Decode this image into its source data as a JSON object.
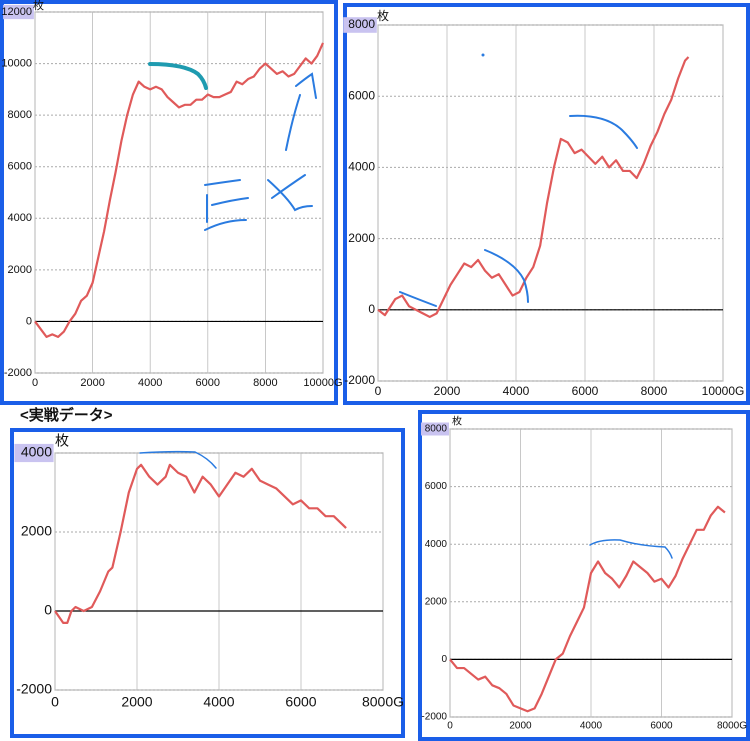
{
  "caption": "<実戦データ>",
  "chart_data": [
    {
      "type": "line",
      "ylabel": "枚",
      "color": "#e05a5a",
      "grid": true,
      "xlim": [
        0,
        10000
      ],
      "xticks": [
        0,
        2000,
        4000,
        6000,
        8000,
        {
          "value": 10000,
          "label": "10000G"
        }
      ],
      "ylim": [
        -2000,
        12000
      ],
      "yticks": [
        -2000,
        0,
        2000,
        4000,
        6000,
        8000,
        10000,
        12000
      ],
      "x": [
        0,
        200,
        400,
        600,
        800,
        1000,
        1200,
        1400,
        1600,
        1800,
        2000,
        2200,
        2400,
        2600,
        2800,
        3000,
        3200,
        3400,
        3600,
        3800,
        4000,
        4200,
        4400,
        4600,
        4800,
        5000,
        5200,
        5400,
        5600,
        5800,
        6000,
        6200,
        6400,
        6600,
        6800,
        7000,
        7200,
        7400,
        7600,
        7800,
        8000,
        8200,
        8400,
        8600,
        8800,
        9000,
        9200,
        9400,
        9600,
        9800,
        10000
      ],
      "values": [
        0,
        -300,
        -600,
        -500,
        -600,
        -400,
        0,
        300,
        800,
        1000,
        1500,
        2500,
        3500,
        4700,
        5800,
        7000,
        8000,
        8800,
        9300,
        9100,
        9000,
        9100,
        9000,
        8700,
        8500,
        8300,
        8400,
        8400,
        8600,
        8600,
        8800,
        8700,
        8700,
        8800,
        8900,
        9300,
        9200,
        9400,
        9500,
        9800,
        10000,
        9800,
        9600,
        9700,
        9500,
        9600,
        9900,
        10200,
        10000,
        10300,
        10800
      ]
    },
    {
      "type": "line",
      "ylabel": "枚",
      "color": "#e05a5a",
      "grid": true,
      "xlim": [
        0,
        10000
      ],
      "xticks": [
        0,
        2000,
        4000,
        6000,
        8000,
        {
          "value": 10000,
          "label": "10000G"
        }
      ],
      "ylim": [
        -2000,
        8000
      ],
      "yticks": [
        -2000,
        0,
        2000,
        4000,
        6000,
        8000
      ],
      "x": [
        0,
        200,
        500,
        700,
        900,
        1100,
        1300,
        1500,
        1700,
        1900,
        2100,
        2300,
        2500,
        2700,
        2900,
        3100,
        3300,
        3500,
        3700,
        3900,
        4100,
        4300,
        4500,
        4700,
        4900,
        5100,
        5300,
        5500,
        5700,
        5900,
        6100,
        6300,
        6500,
        6700,
        6900,
        7100,
        7300,
        7500,
        7700,
        7900,
        8100,
        8300,
        8500,
        8700,
        8900,
        9000
      ],
      "values": [
        0,
        -150,
        300,
        400,
        100,
        0,
        -100,
        -200,
        -100,
        300,
        700,
        1000,
        1300,
        1200,
        1400,
        1100,
        900,
        1000,
        700,
        400,
        500,
        900,
        1200,
        1800,
        3000,
        4000,
        4800,
        4700,
        4400,
        4500,
        4300,
        4100,
        4300,
        4000,
        4200,
        3900,
        3900,
        3700,
        4100,
        4600,
        5000,
        5500,
        5900,
        6500,
        7000,
        7100
      ]
    },
    {
      "type": "line",
      "ylabel": "枚",
      "color": "#e05a5a",
      "grid": true,
      "xlim": [
        0,
        8000
      ],
      "xticks": [
        0,
        2000,
        4000,
        6000,
        {
          "value": 8000,
          "label": "8000G"
        }
      ],
      "ylim": [
        -2000,
        4000
      ],
      "yticks": [
        -2000,
        0,
        2000,
        4000
      ],
      "x": [
        0,
        200,
        300,
        400,
        500,
        700,
        900,
        1100,
        1300,
        1400,
        1600,
        1800,
        2000,
        2100,
        2300,
        2500,
        2700,
        2800,
        3000,
        3200,
        3400,
        3600,
        3800,
        4000,
        4200,
        4400,
        4600,
        4800,
        5000,
        5200,
        5400,
        5600,
        5800,
        6000,
        6200,
        6400,
        6600,
        6800,
        7000,
        7100
      ],
      "values": [
        0,
        -300,
        -300,
        0,
        100,
        0,
        100,
        500,
        1000,
        1100,
        2000,
        3000,
        3600,
        3700,
        3400,
        3200,
        3400,
        3700,
        3500,
        3400,
        3000,
        3400,
        3200,
        2900,
        3200,
        3500,
        3400,
        3600,
        3300,
        3200,
        3100,
        2900,
        2700,
        2800,
        2600,
        2600,
        2400,
        2400,
        2200,
        2100
      ]
    },
    {
      "type": "line",
      "ylabel": "枚",
      "color": "#e05a5a",
      "grid": true,
      "xlim": [
        0,
        8000
      ],
      "xticks": [
        0,
        2000,
        4000,
        6000,
        {
          "value": 8000,
          "label": "8000G"
        }
      ],
      "ylim": [
        -2000,
        8000
      ],
      "yticks": [
        -2000,
        0,
        2000,
        4000,
        6000,
        8000
      ],
      "x": [
        0,
        200,
        400,
        600,
        800,
        1000,
        1200,
        1400,
        1600,
        1800,
        2000,
        2200,
        2400,
        2600,
        2800,
        3000,
        3200,
        3400,
        3600,
        3800,
        4000,
        4200,
        4400,
        4600,
        4800,
        5000,
        5200,
        5400,
        5600,
        5800,
        6000,
        6200,
        6400,
        6600,
        6800,
        7000,
        7200,
        7400,
        7600,
        7800
      ],
      "values": [
        0,
        -300,
        -300,
        -500,
        -700,
        -600,
        -900,
        -1000,
        -1200,
        -1600,
        -1700,
        -1800,
        -1700,
        -1200,
        -600,
        0,
        200,
        800,
        1300,
        1800,
        3000,
        3400,
        3000,
        2800,
        2500,
        2900,
        3400,
        3200,
        3000,
        2700,
        2800,
        2500,
        2900,
        3500,
        4000,
        4500,
        4500,
        5000,
        5300,
        5100
      ]
    }
  ]
}
